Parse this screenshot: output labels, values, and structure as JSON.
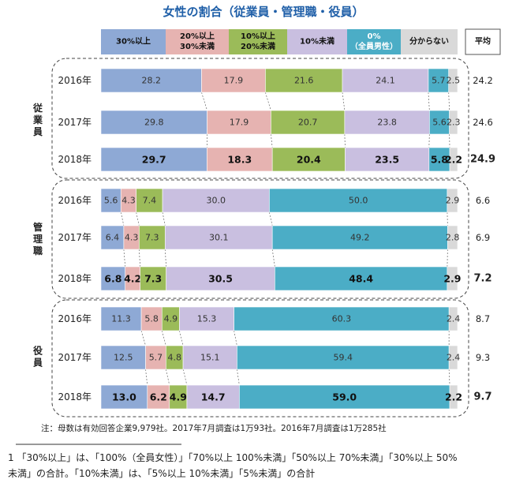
{
  "chart_data": {
    "type": "bar",
    "stacked": "100%",
    "orientation": "horizontal",
    "title": "女性の割合（従業員・管理職・役員）",
    "legend": {
      "position": "top",
      "items": [
        {
          "label": "30%以上",
          "color": "#8ea9d5"
        },
        {
          "label": "20%以上\n30%未満",
          "color": "#e6b3b1"
        },
        {
          "label": "10%以上\n20%未満",
          "color": "#9bbb59"
        },
        {
          "label": "10%未満",
          "color": "#c9bfe0"
        },
        {
          "label": "0%\n（全員男性）",
          "color": "#4badc6"
        },
        {
          "label": "分からない",
          "color": "#d9d9d9"
        }
      ],
      "average_header": "平均"
    },
    "groups": [
      {
        "name": "従業員",
        "rows": [
          {
            "year": "2016年",
            "values": [
              28.2,
              17.9,
              21.6,
              24.1,
              5.7,
              2.5
            ],
            "average": 24.2,
            "bold": false
          },
          {
            "year": "2017年",
            "values": [
              29.8,
              17.9,
              20.7,
              23.8,
              5.6,
              2.3
            ],
            "average": 24.6,
            "bold": false
          },
          {
            "year": "2018年",
            "values": [
              29.7,
              18.3,
              20.4,
              23.5,
              5.8,
              2.2
            ],
            "average": 24.9,
            "bold": true
          }
        ]
      },
      {
        "name": "管理職",
        "rows": [
          {
            "year": "2016年",
            "values": [
              5.6,
              4.3,
              7.4,
              30.0,
              50.0,
              2.9
            ],
            "average": 6.6,
            "bold": false
          },
          {
            "year": "2017年",
            "values": [
              6.4,
              4.3,
              7.3,
              30.1,
              49.2,
              2.8
            ],
            "average": 6.9,
            "bold": false
          },
          {
            "year": "2018年",
            "values": [
              6.8,
              4.2,
              7.3,
              30.5,
              48.4,
              2.9
            ],
            "average": 7.2,
            "bold": true
          }
        ]
      },
      {
        "name": "役員",
        "rows": [
          {
            "year": "2016年",
            "values": [
              11.3,
              5.8,
              4.9,
              15.3,
              60.3,
              2.4
            ],
            "average": 8.7,
            "bold": false
          },
          {
            "year": "2017年",
            "values": [
              12.5,
              5.7,
              4.8,
              15.1,
              59.4,
              2.4
            ],
            "average": 9.3,
            "bold": false
          },
          {
            "year": "2018年",
            "values": [
              13.0,
              6.2,
              4.9,
              14.7,
              59.0,
              2.2
            ],
            "average": 9.7,
            "bold": true
          }
        ]
      }
    ],
    "note": "注：母数は有効回答企業9,979社。2017年7月調査は1万93社。2016年7月調査は1万285社",
    "footnote_lines": [
      "1 「30%以上」は、「100%（全員女性）」「70%以上 100%未満」「50%以上 70%未満」「30%以上 50%",
      "未満」の合計。「10%未満」は、「5%以上 10%未満」「5%未満」の合計"
    ]
  }
}
